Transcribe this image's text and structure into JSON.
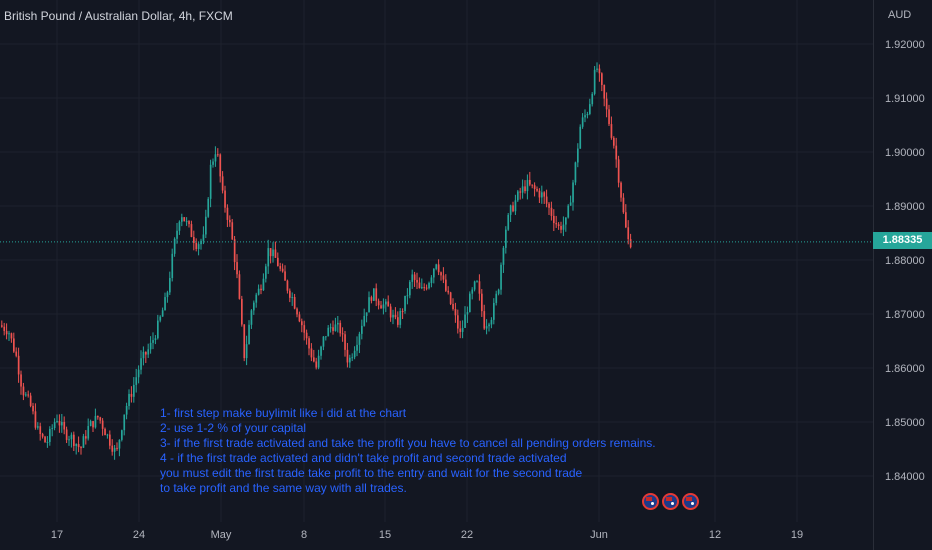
{
  "header": {
    "title": "British Pound / Australian Dollar, 4h, FXCM",
    "currency": "AUD"
  },
  "current_price": "1.88335",
  "notes": [
    "1- first step make buylimit like i did at the chart",
    "2- use 1-2 % of your capital",
    "3- if the first trade activated and take the profit you have to cancel all pending orders remains.",
    "4 - if the first trade activated and didn't take profit and second trade activated",
    "you must edit the first trade take profit to the entry and wait for the second trade",
    "to take profit and the same way with all trades."
  ],
  "events": [
    "australia-flag-icon",
    "australia-flag-icon",
    "australia-flag-icon"
  ],
  "colors": {
    "background": "#131722",
    "up": "#26a69a",
    "down": "#ef5350",
    "grid": "#1e222d",
    "text": "#b2b5be",
    "notes": "#2962ff"
  },
  "chart_data": {
    "type": "candlestick",
    "symbol": "GBPAUD",
    "timeframe": "4h",
    "ylim": [
      1.835,
      1.925
    ],
    "y_ticks": [
      "1.84000",
      "1.85000",
      "1.86000",
      "1.87000",
      "1.88000",
      "1.89000",
      "1.90000",
      "1.91000",
      "1.92000"
    ],
    "x_ticks": [
      "17",
      "24",
      "May",
      "8",
      "15",
      "22",
      "Jun",
      "12",
      "19"
    ],
    "last_price": 1.88335,
    "price_path": [
      [
        0,
        1.868
      ],
      [
        10,
        1.867
      ],
      [
        18,
        1.862
      ],
      [
        24,
        1.856
      ],
      [
        32,
        1.853
      ],
      [
        40,
        1.848
      ],
      [
        48,
        1.846
      ],
      [
        58,
        1.851
      ],
      [
        66,
        1.848
      ],
      [
        74,
        1.847
      ],
      [
        82,
        1.845
      ],
      [
        90,
        1.849
      ],
      [
        100,
        1.851
      ],
      [
        110,
        1.847
      ],
      [
        118,
        1.844
      ],
      [
        126,
        1.852
      ],
      [
        134,
        1.856
      ],
      [
        142,
        1.861
      ],
      [
        152,
        1.864
      ],
      [
        160,
        1.868
      ],
      [
        168,
        1.873
      ],
      [
        176,
        1.883
      ],
      [
        182,
        1.889
      ],
      [
        190,
        1.886
      ],
      [
        198,
        1.883
      ],
      [
        206,
        1.884
      ],
      [
        212,
        1.897
      ],
      [
        218,
        1.901
      ],
      [
        224,
        1.892
      ],
      [
        232,
        1.886
      ],
      [
        238,
        1.878
      ],
      [
        246,
        1.862
      ],
      [
        254,
        1.872
      ],
      [
        262,
        1.875
      ],
      [
        270,
        1.882
      ],
      [
        278,
        1.88
      ],
      [
        286,
        1.876
      ],
      [
        294,
        1.873
      ],
      [
        302,
        1.869
      ],
      [
        310,
        1.864
      ],
      [
        318,
        1.86
      ],
      [
        326,
        1.866
      ],
      [
        334,
        1.868
      ],
      [
        342,
        1.867
      ],
      [
        350,
        1.861
      ],
      [
        358,
        1.865
      ],
      [
        366,
        1.87
      ],
      [
        374,
        1.874
      ],
      [
        382,
        1.872
      ],
      [
        390,
        1.871
      ],
      [
        398,
        1.868
      ],
      [
        406,
        1.872
      ],
      [
        414,
        1.877
      ],
      [
        422,
        1.874
      ],
      [
        430,
        1.876
      ],
      [
        438,
        1.88
      ],
      [
        446,
        1.875
      ],
      [
        454,
        1.871
      ],
      [
        462,
        1.866
      ],
      [
        470,
        1.872
      ],
      [
        478,
        1.876
      ],
      [
        486,
        1.868
      ],
      [
        494,
        1.87
      ],
      [
        500,
        1.875
      ],
      [
        506,
        1.885
      ],
      [
        512,
        1.889
      ],
      [
        520,
        1.892
      ],
      [
        528,
        1.894
      ],
      [
        536,
        1.893
      ],
      [
        544,
        1.892
      ],
      [
        552,
        1.889
      ],
      [
        560,
        1.886
      ],
      [
        568,
        1.887
      ],
      [
        576,
        1.896
      ],
      [
        582,
        1.905
      ],
      [
        590,
        1.908
      ],
      [
        598,
        1.916
      ],
      [
        604,
        1.911
      ],
      [
        610,
        1.906
      ],
      [
        616,
        1.901
      ],
      [
        622,
        1.893
      ],
      [
        626,
        1.887
      ],
      [
        630,
        1.8834
      ]
    ]
  }
}
